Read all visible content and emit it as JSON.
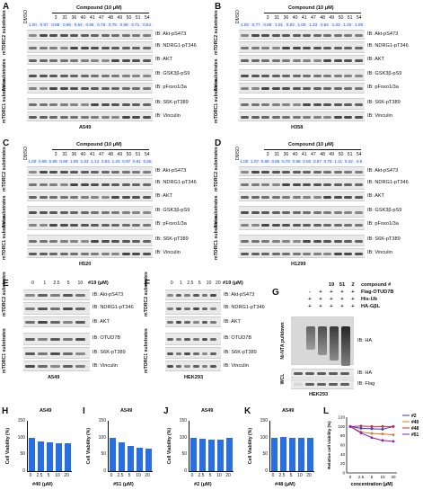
{
  "panels": {
    "A": {
      "letter": "A",
      "cell": "A549",
      "compound_header": "Compound (10 μM)",
      "dmso": "DMSO",
      "lanes": [
        "3",
        "31",
        "36",
        "40",
        "41",
        "47",
        "48",
        "49",
        "50",
        "51",
        "54"
      ],
      "quant": [
        "1.00",
        "0.97",
        "0.88",
        "0.96",
        "0.64",
        "0.96",
        "0.78",
        "0.75",
        "0.99",
        "0.71",
        "0.84"
      ],
      "groups": [
        "mTORC2 substrates",
        "Akt substrates",
        "mTORC1 substrates"
      ],
      "ib": [
        "IB: Akt-pS473",
        "IB: NDRG1-pT346",
        "IB: AKT",
        "IB: GSK3β-pS9",
        "IB: pFoxo1/3a",
        "IB: S6K-pT389",
        "IB: Vinculin"
      ]
    },
    "B": {
      "letter": "B",
      "cell": "H358",
      "compound_header": "Compound (10 μM)",
      "dmso": "DMSO",
      "lanes": [
        "3",
        "31",
        "36",
        "40",
        "41",
        "47",
        "48",
        "49",
        "50",
        "51",
        "54"
      ],
      "quant": [
        "1.00",
        "0.77",
        "0.88",
        "1.01",
        "0.83",
        "1.00",
        "1.33",
        "0.84",
        "1.03",
        "1.30",
        "1.09"
      ],
      "groups": [
        "mTORC2 substrates",
        "Akt substrates",
        "mTORC1 substrates"
      ],
      "ib": [
        "IB: Akt-pS473",
        "IB: NDRG1-pT346",
        "IB: AKT",
        "IB: GSK3β-pS9",
        "IB: pFoxo1/3a",
        "IB: S6K-pT389",
        "IB: Vinculin"
      ]
    },
    "C": {
      "letter": "C",
      "cell": "H520",
      "compound_header": "Compound (10 μM)",
      "dmso": "DMSO",
      "lanes": [
        "3",
        "31",
        "36",
        "40",
        "41",
        "47",
        "48",
        "49",
        "50",
        "51",
        "54"
      ],
      "quant": [
        "1.00",
        "0.98",
        "0.99",
        "0.99",
        "1.09",
        "1.03",
        "1.12",
        "0.83",
        "1.25",
        "0.97",
        "0.91",
        "0.55"
      ],
      "groups": [
        "mTORC2 substrates",
        "Akt substrates",
        "mTORC1 substrates"
      ],
      "ib": [
        "IB: Akt-pS473",
        "IB: NDRG1-pT346",
        "IB: AKT",
        "IB: GSK3β-pS9",
        "IB: pFoxo1/3a",
        "IB: S6K-pT389",
        "IB: Vinculin"
      ]
    },
    "D": {
      "letter": "D",
      "cell": "H1299",
      "compound_header": "Compound (10 μM)",
      "dmso": "DMSO",
      "lanes": [
        "3",
        "31",
        "36",
        "40",
        "41",
        "47",
        "48",
        "49",
        "50",
        "51",
        "54"
      ],
      "quant": [
        "1.00",
        "1.07",
        "0.89",
        "0.85",
        "0.70",
        "0.98",
        "0.82",
        "0.57",
        "0.76",
        "1.11",
        "0.42",
        "0.5"
      ],
      "groups": [
        "mTORC2 substrates",
        "Akt substrates",
        "mTORC1 substrates"
      ],
      "ib": [
        "IB: Akt-pS473",
        "IB: NDRG1-pT346",
        "IB: AKT",
        "IB: GSK3β-pS9",
        "IB: pFoxo1/3a",
        "IB: S6K-pT389",
        "IB: Vinculin"
      ]
    },
    "E": {
      "letter": "E",
      "cell": "A549",
      "header": "#19 (μM)",
      "lanes": [
        "0",
        "1",
        "2.5",
        "5",
        "10"
      ],
      "groups": [
        "mTORC2 substrates",
        "mTORC1 substrates"
      ],
      "ib": [
        "IB: Akt-pS473",
        "IB: NDRG1-pT346",
        "IB: AKT",
        "IB: OTUD7B",
        "IB: S6K-pT389",
        "IB: Vinculin"
      ]
    },
    "F": {
      "letter": "F",
      "cell": "HEK293",
      "header": "#19 (μM)",
      "lanes": [
        "0",
        "1",
        "2.5",
        "5",
        "10",
        "20"
      ],
      "groups": [
        "mTORC2 substrates",
        "mTORC1 substrates"
      ],
      "ib": [
        "IB: Akt-pS473",
        "IB: NDRG1-pT346",
        "IB: AKT",
        "IB: OTUD7B",
        "IB: S6K-pT389",
        "IB: Vinculin"
      ]
    },
    "G": {
      "letter": "G",
      "cell": "HEK293",
      "compound_cols": [
        "19",
        "51",
        "2"
      ],
      "rows": [
        {
          "label": "compound #"
        },
        {
          "label": "Flag-OTUD7B",
          "marks": [
            "-",
            "+",
            "+",
            "+",
            "+"
          ]
        },
        {
          "label": "His-Ub",
          "marks": [
            "+",
            "+",
            "+",
            "+",
            "+"
          ]
        },
        {
          "label": "HA-GβL",
          "marks": [
            "+",
            "+",
            "+",
            "+",
            "+"
          ]
        }
      ],
      "side_labels": [
        "Ni-NTA pulldown",
        "WCL"
      ],
      "ib": [
        "IB: HA",
        "IB: HA",
        "IB: Flag"
      ]
    }
  },
  "bar_panels": [
    {
      "letter": "H",
      "cell": "A549",
      "ylabel": "Cell Viability (%)",
      "xlabel": "#40 (μM)",
      "yticks": [
        "0",
        "50",
        "100",
        "150"
      ],
      "x": [
        "0",
        "2.5",
        "5",
        "10",
        "20"
      ],
      "values": [
        100,
        88,
        85,
        84,
        82
      ]
    },
    {
      "letter": "I",
      "cell": "A549",
      "ylabel": "Cell Viability (%)",
      "xlabel": "#51 (μM)",
      "yticks": [
        "0",
        "50",
        "100",
        "150"
      ],
      "x": [
        "0",
        "2.5",
        "5",
        "10",
        "20"
      ],
      "values": [
        100,
        86,
        76,
        70,
        68
      ]
    },
    {
      "letter": "J",
      "cell": "A549",
      "ylabel": "Cell Viability (%)",
      "xlabel": "#2 (μM)",
      "yticks": [
        "0",
        "50",
        "100",
        "150"
      ],
      "x": [
        "0",
        "2.5",
        "5",
        "10",
        "20"
      ],
      "values": [
        100,
        96,
        95,
        94,
        100
      ]
    },
    {
      "letter": "K",
      "cell": "A549",
      "ylabel": "Cell Viability (%)",
      "xlabel": "#48 (μM)",
      "yticks": [
        "0",
        "50",
        "100",
        "150"
      ],
      "x": [
        "0",
        "2.5",
        "5",
        "10",
        "20"
      ],
      "values": [
        100,
        101,
        100,
        100,
        100
      ]
    }
  ],
  "chart_data": [
    {
      "type": "bar",
      "title": "A549",
      "xlabel": "#40 (μM)",
      "ylabel": "Cell Viability (%)",
      "categories": [
        "0",
        "2.5",
        "5",
        "10",
        "20"
      ],
      "values": [
        100,
        88,
        85,
        84,
        82
      ],
      "ylim": [
        0,
        150
      ]
    },
    {
      "type": "bar",
      "title": "A549",
      "xlabel": "#51 (μM)",
      "ylabel": "Cell Viability (%)",
      "categories": [
        "0",
        "2.5",
        "5",
        "10",
        "20"
      ],
      "values": [
        100,
        86,
        76,
        70,
        68
      ],
      "ylim": [
        0,
        150
      ]
    },
    {
      "type": "bar",
      "title": "A549",
      "xlabel": "#2 (μM)",
      "ylabel": "Cell Viability (%)",
      "categories": [
        "0",
        "2.5",
        "5",
        "10",
        "20"
      ],
      "values": [
        100,
        96,
        95,
        94,
        100
      ],
      "ylim": [
        0,
        150
      ]
    },
    {
      "type": "bar",
      "title": "A549",
      "xlabel": "#48 (μM)",
      "ylabel": "Cell Viability (%)",
      "categories": [
        "0",
        "2.5",
        "5",
        "10",
        "20"
      ],
      "values": [
        100,
        101,
        100,
        100,
        100
      ],
      "ylim": [
        0,
        150
      ]
    },
    {
      "type": "line",
      "xlabel": "concentration (μM)",
      "ylabel": "Relative cell viability (%)",
      "x": [
        0,
        2.5,
        5,
        10,
        20
      ],
      "ylim": [
        0,
        120
      ],
      "yticks": [
        0,
        20,
        40,
        60,
        80,
        100,
        120
      ],
      "legend": "top-right",
      "series": [
        {
          "name": "#2",
          "color": "#1f3fd0",
          "values": [
            100,
            96,
            95,
            94,
            100
          ]
        },
        {
          "name": "#40",
          "color": "#e07820",
          "values": [
            100,
            88,
            85,
            84,
            82
          ]
        },
        {
          "name": "#48",
          "color": "#d8232a",
          "values": [
            100,
            101,
            100,
            100,
            100
          ]
        },
        {
          "name": "#51",
          "color": "#8a1fb0",
          "values": [
            100,
            86,
            76,
            70,
            68
          ]
        }
      ]
    }
  ],
  "panel_L": {
    "letter": "L"
  }
}
